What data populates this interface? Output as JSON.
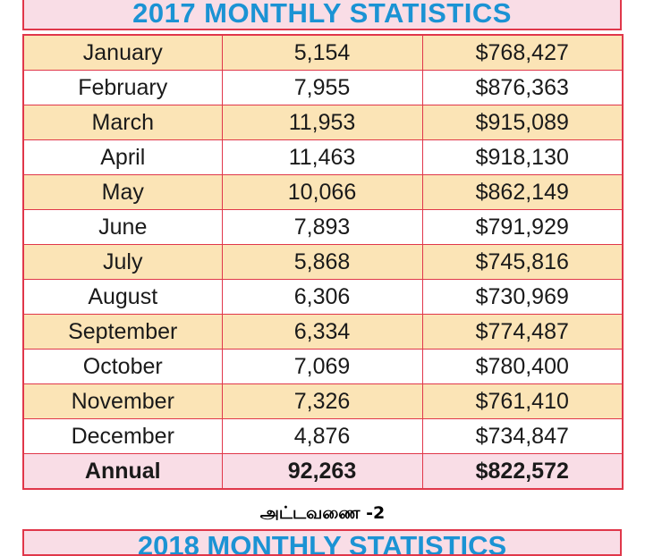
{
  "title": "2017 MONTHLY STATISTICS",
  "rows": [
    {
      "month": "January",
      "count": "5,154",
      "amount": "$768,427"
    },
    {
      "month": "February",
      "count": "7,955",
      "amount": "$876,363"
    },
    {
      "month": "March",
      "count": "11,953",
      "amount": "$915,089"
    },
    {
      "month": "April",
      "count": "11,463",
      "amount": "$918,130"
    },
    {
      "month": "May",
      "count": "10,066",
      "amount": "$862,149"
    },
    {
      "month": "June",
      "count": "7,893",
      "amount": "$791,929"
    },
    {
      "month": "July",
      "count": "5,868",
      "amount": "$745,816"
    },
    {
      "month": "August",
      "count": "6,306",
      "amount": "$730,969"
    },
    {
      "month": "September",
      "count": "6,334",
      "amount": "$774,487"
    },
    {
      "month": "October",
      "count": "7,069",
      "amount": "$780,400"
    },
    {
      "month": "November",
      "count": "7,326",
      "amount": "$761,410"
    },
    {
      "month": "December",
      "count": "4,876",
      "amount": "$734,847"
    }
  ],
  "total": {
    "label": "Annual",
    "count": "92,263",
    "amount": "$822,572"
  },
  "caption": "அட்டவணை -2",
  "next_title": "2018 MONTHLY STATISTICS",
  "colors": {
    "border": "#e0374a",
    "title_text": "#1b93d4",
    "title_bg": "#f9dde6",
    "row_alt": "#fbe4b6"
  }
}
